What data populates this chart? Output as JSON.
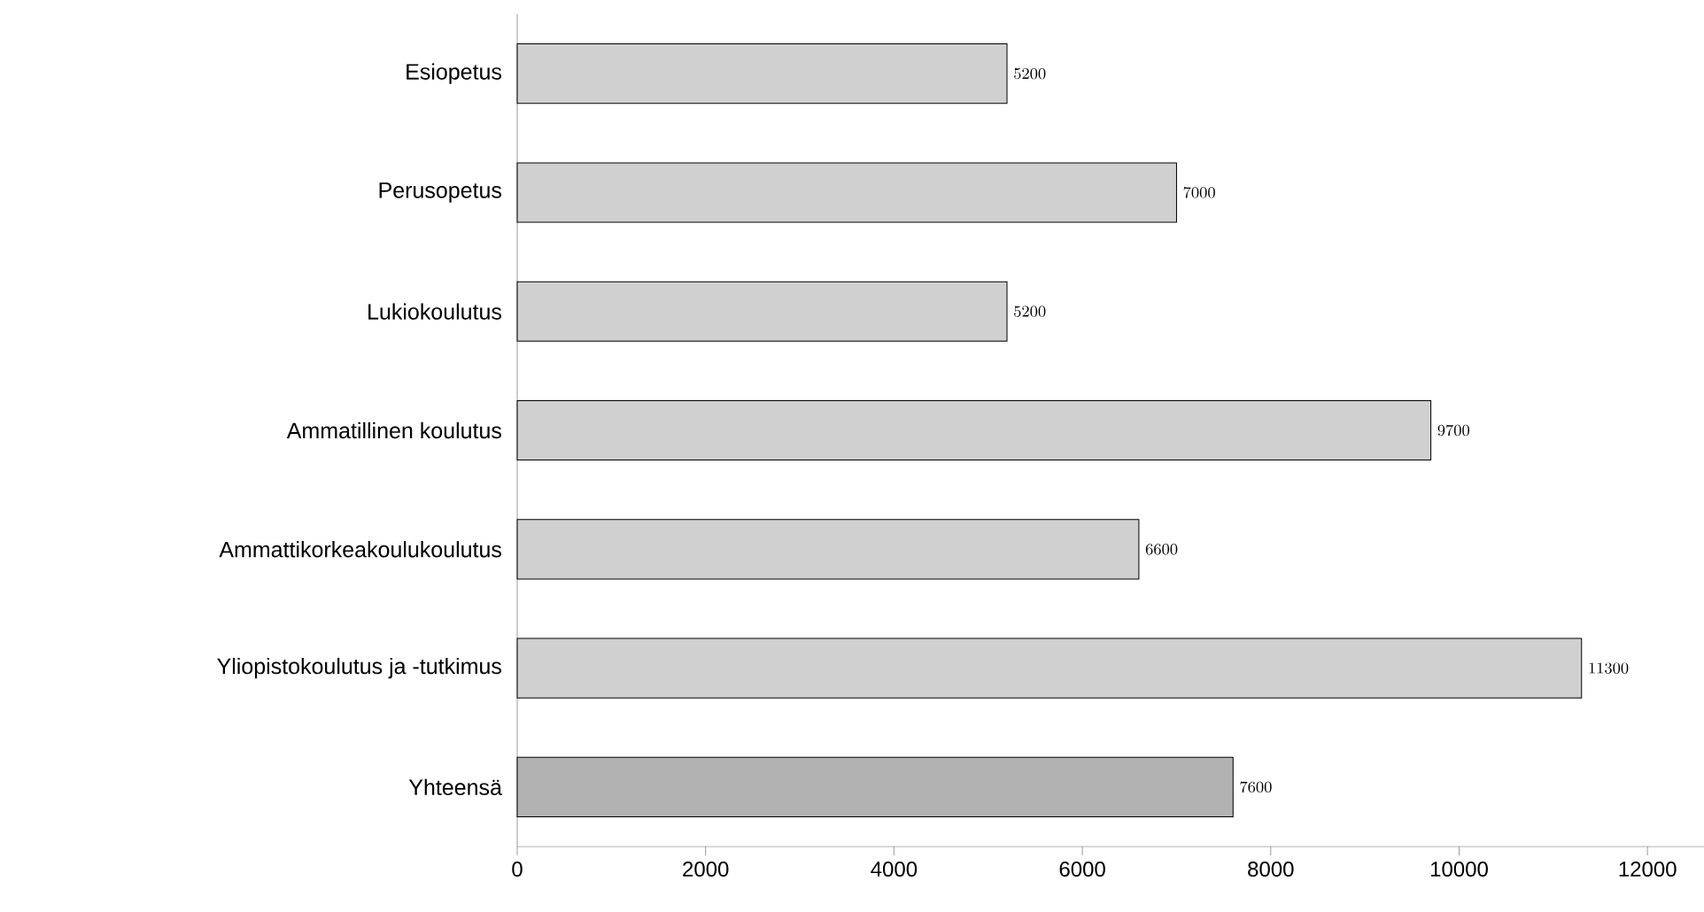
{
  "chart_data": {
    "type": "bar",
    "orientation": "horizontal",
    "categories": [
      "Esiopetus",
      "Perusopetus",
      "Lukiokoulutus",
      "Ammatillinen koulutus",
      "Ammattikorkeakoulukoulutus",
      "Yliopistokoulutus ja -tutkimus",
      "Yhteensä"
    ],
    "values": [
      5200,
      7000,
      5200,
      9700,
      6600,
      11300,
      7600
    ],
    "colors": [
      "#d0d0d0",
      "#d0d0d0",
      "#d0d0d0",
      "#d0d0d0",
      "#d0d0d0",
      "#d0d0d0",
      "#b2b2b2"
    ],
    "xlim": [
      0,
      12600
    ],
    "xticks": [
      0,
      2000,
      4000,
      6000,
      8000,
      10000,
      12000
    ],
    "data_labels": true
  }
}
